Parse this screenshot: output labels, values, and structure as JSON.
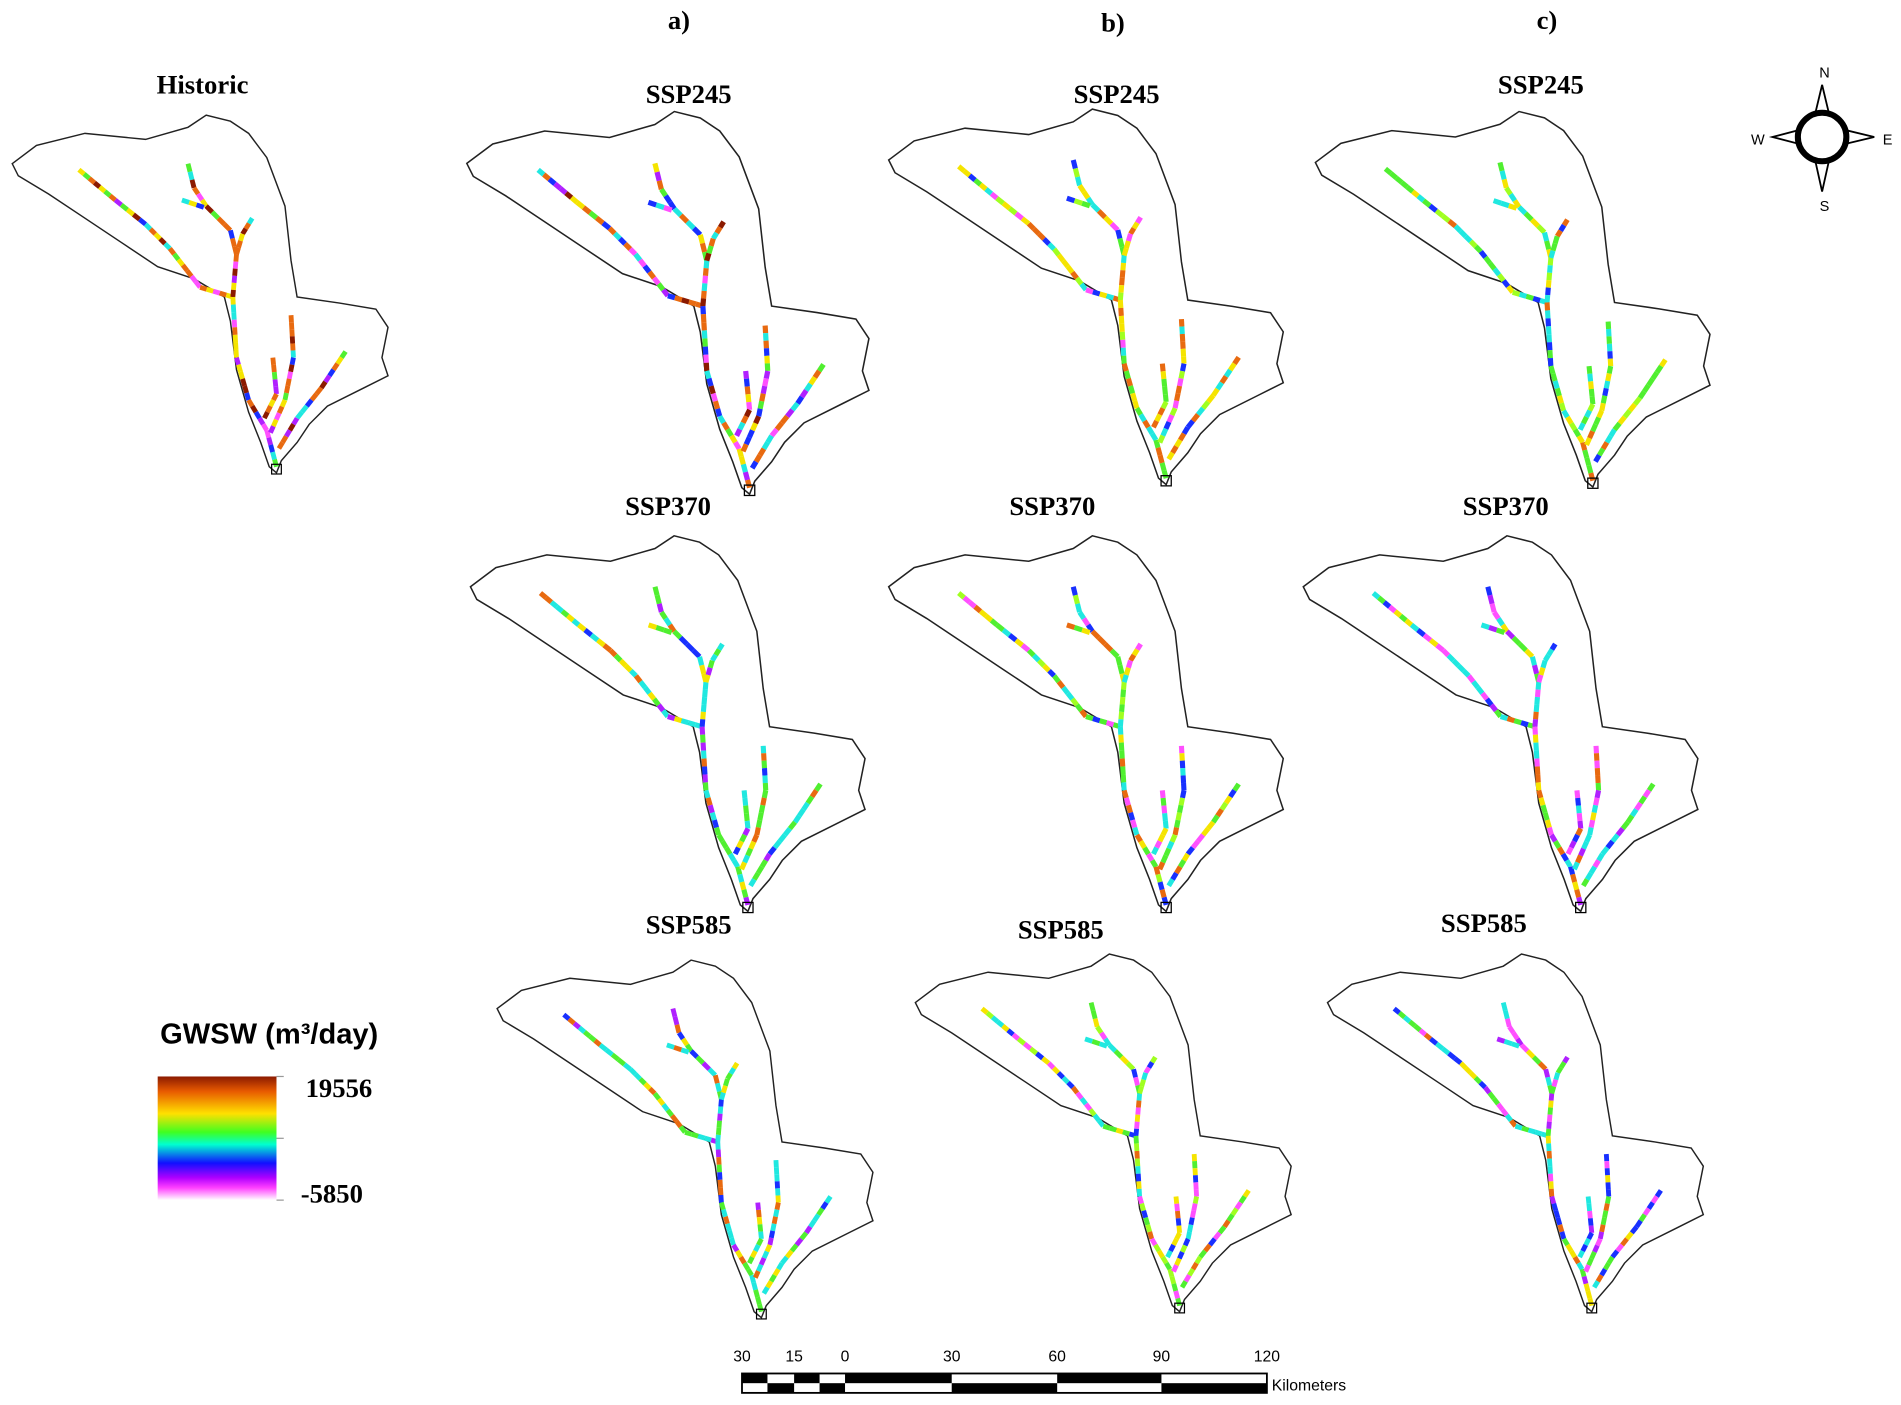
{
  "historic": {
    "title": "Historic"
  },
  "columns": [
    "a)",
    "b)",
    "c)"
  ],
  "panels": [
    {
      "title": "SSP245"
    },
    {
      "title": "SSP245"
    },
    {
      "title": "SSP245"
    },
    {
      "title": "SSP370"
    },
    {
      "title": "SSP370"
    },
    {
      "title": "SSP370"
    },
    {
      "title": "SSP585"
    },
    {
      "title": "SSP585"
    },
    {
      "title": "SSP585"
    }
  ],
  "legend": {
    "title": "GWSW (m³/day)",
    "max": 19556,
    "min": -5850
  },
  "compass": {
    "n": "N",
    "s": "S",
    "w": "W",
    "e": "E"
  },
  "scale_bar": {
    "ticks": [
      "30",
      "15",
      "0",
      "30",
      "60",
      "90",
      "120"
    ],
    "unit": "Kilometers"
  }
}
